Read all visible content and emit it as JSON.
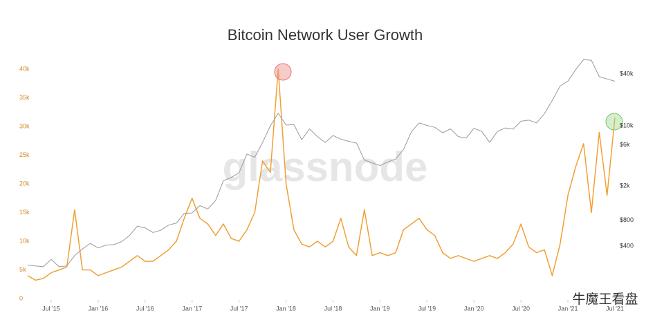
{
  "chart_data": {
    "type": "line",
    "title": "Bitcoin Network User Growth",
    "watermark": "glassnode",
    "source_mark": "牛魔王看盘",
    "x": [
      "2015-04",
      "2015-05",
      "2015-06",
      "2015-07",
      "2015-08",
      "2015-09",
      "2015-10",
      "2015-11",
      "2015-12",
      "2016-01",
      "2016-02",
      "2016-03",
      "2016-04",
      "2016-05",
      "2016-06",
      "2016-07",
      "2016-08",
      "2016-09",
      "2016-10",
      "2016-11",
      "2016-12",
      "2017-01",
      "2017-02",
      "2017-03",
      "2017-04",
      "2017-05",
      "2017-06",
      "2017-07",
      "2017-08",
      "2017-09",
      "2017-10",
      "2017-11",
      "2017-12",
      "2018-01",
      "2018-02",
      "2018-03",
      "2018-04",
      "2018-05",
      "2018-06",
      "2018-07",
      "2018-08",
      "2018-09",
      "2018-10",
      "2018-11",
      "2018-12",
      "2019-01",
      "2019-02",
      "2019-03",
      "2019-04",
      "2019-05",
      "2019-06",
      "2019-07",
      "2019-08",
      "2019-09",
      "2019-10",
      "2019-11",
      "2019-12",
      "2020-01",
      "2020-02",
      "2020-03",
      "2020-04",
      "2020-05",
      "2020-06",
      "2020-07",
      "2020-08",
      "2020-09",
      "2020-10",
      "2020-11",
      "2020-12",
      "2021-01",
      "2021-02",
      "2021-03",
      "2021-04",
      "2021-05",
      "2021-06",
      "2021-07"
    ],
    "series": [
      {
        "color": "#f0a035",
        "axis": "y",
        "values": [
          4000,
          3200,
          3500,
          4500,
          5000,
          5500,
          15500,
          5000,
          5000,
          4000,
          4500,
          5000,
          5500,
          6500,
          7500,
          6500,
          6500,
          7500,
          8500,
          10000,
          14000,
          17500,
          14000,
          13000,
          11000,
          13000,
          10500,
          10000,
          12000,
          15000,
          24000,
          22000,
          40000,
          20000,
          12000,
          9500,
          9000,
          10000,
          9000,
          10000,
          14000,
          9000,
          7500,
          15500,
          7500,
          8000,
          7500,
          8000,
          12000,
          13000,
          14000,
          12000,
          11000,
          8000,
          7000,
          7500,
          7000,
          6500,
          7000,
          7500,
          7000,
          8000,
          9500,
          13000,
          9000,
          8000,
          8500,
          4000,
          9500,
          18000,
          23000,
          27000,
          15000,
          29000,
          18000,
          31500
        ]
      },
      {
        "color": "#9a9a9a",
        "axis": "y2",
        "values": [
          240,
          235,
          230,
          280,
          230,
          235,
          310,
          370,
          430,
          380,
          410,
          415,
          450,
          530,
          680,
          650,
          575,
          610,
          700,
          740,
          960,
          970,
          1180,
          1080,
          1350,
          2300,
          2500,
          2850,
          4700,
          4300,
          6400,
          10000,
          14000,
          10200,
          10300,
          6900,
          9200,
          7500,
          6400,
          7700,
          7000,
          6600,
          6300,
          4000,
          3700,
          3450,
          3800,
          4100,
          5300,
          8500,
          10800,
          10100,
          9600,
          8300,
          9200,
          7500,
          7200,
          9350,
          8600,
          6400,
          8600,
          9450,
          9150,
          11300,
          11650,
          10800,
          13800,
          19700,
          29000,
          33100,
          45000,
          58800,
          57700,
          37300,
          35000,
          33000
        ]
      }
    ],
    "xlim": [
      "2015-04",
      "2021-07"
    ],
    "xticks": [
      {
        "value": "2015-07",
        "label": "Jul '15"
      },
      {
        "value": "2016-01",
        "label": "Jan '16"
      },
      {
        "value": "2016-07",
        "label": "Jul '16"
      },
      {
        "value": "2017-01",
        "label": "Jan '17"
      },
      {
        "value": "2017-07",
        "label": "Jul '17"
      },
      {
        "value": "2018-01",
        "label": "Jan '18"
      },
      {
        "value": "2018-07",
        "label": "Jul '18"
      },
      {
        "value": "2019-01",
        "label": "Jan '19"
      },
      {
        "value": "2019-07",
        "label": "Jul '19"
      },
      {
        "value": "2020-01",
        "label": "Jan '20"
      },
      {
        "value": "2020-07",
        "label": "Jul '20"
      },
      {
        "value": "2021-01",
        "label": "Jan '21"
      },
      {
        "value": "2021-07",
        "label": "Jul '21"
      }
    ],
    "ylim": [
      0,
      42000
    ],
    "yticks": [
      0,
      {
        "value": 5000,
        "label": "5k"
      },
      {
        "value": 10000,
        "label": "10k"
      },
      {
        "value": 15000,
        "label": "15k"
      },
      {
        "value": 20000,
        "label": "20k"
      },
      {
        "value": 25000,
        "label": "25k"
      },
      {
        "value": 30000,
        "label": "30k"
      },
      {
        "value": 35000,
        "label": "35k"
      },
      {
        "value": 40000,
        "label": "40k"
      }
    ],
    "y2lim": [
      98,
      62000
    ],
    "y2log": true,
    "y2ticks": [
      {
        "value": 400,
        "label": "$400"
      },
      {
        "value": 800,
        "label": "$800"
      },
      {
        "value": 2000,
        "label": "$2k"
      },
      {
        "value": 6000,
        "label": "$6k"
      },
      {
        "value": 10000,
        "label": "$10k"
      },
      {
        "value": 40000,
        "label": "$40k"
      }
    ],
    "grid": false
  }
}
